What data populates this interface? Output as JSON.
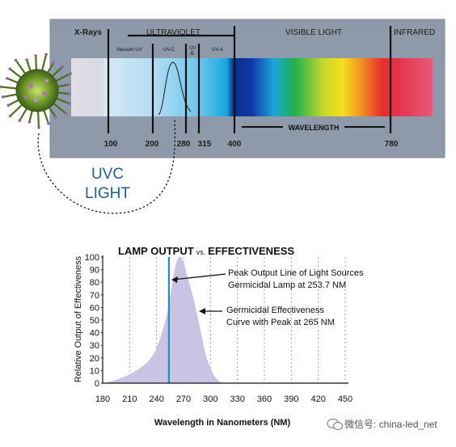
{
  "spectrum": {
    "regions": {
      "xrays": "X-Rays",
      "ultraviolet": "ULTRAVIOLET",
      "visible": "VISIBLE LIGHT",
      "infrared": "INFRARED"
    },
    "uv_bands": {
      "vacuum": "Vacuum UV",
      "uvc": "UV-C",
      "uvb_top": "UV",
      "uvb_bottom": "-B",
      "uva": "UV-A"
    },
    "wavelength_label": "WAVELENGTH",
    "ticks": [
      "100",
      "200",
      "280",
      "315",
      "400",
      "780"
    ],
    "uvc_callout": [
      "UVC",
      "LIGHT"
    ]
  },
  "chart_data": {
    "type": "area",
    "title_main": "LAMP OUTPUT",
    "title_vs": "vs.",
    "title_end": "EFFECTIVENESS",
    "xlabel": "Wavelength in Nanometers (NM)",
    "ylabel": "Relative Output of Effectiveness",
    "xlim": [
      180,
      450
    ],
    "ylim": [
      0,
      100
    ],
    "xticks": [
      180,
      210,
      240,
      270,
      300,
      330,
      360,
      390,
      420,
      450
    ],
    "yticks": [
      0,
      10,
      20,
      30,
      40,
      50,
      60,
      70,
      80,
      90,
      100
    ],
    "grid": "vertical dotted",
    "effectiveness_curve": {
      "x": [
        183,
        200,
        215,
        230,
        240,
        250,
        255,
        260,
        265,
        270,
        275,
        280,
        285,
        290,
        295,
        300,
        305,
        312
      ],
      "y": [
        0,
        4,
        9,
        17,
        28,
        50,
        68,
        90,
        100,
        96,
        83,
        70,
        55,
        38,
        22,
        12,
        5,
        0
      ],
      "color": "#c9c4e4"
    },
    "peak_line": {
      "x": 253.7,
      "color": "#1a94b8"
    },
    "annotations": [
      {
        "lines": [
          "Peak Output Line of Light Sources",
          "Germicidal Lamp at 253.7 NM"
        ]
      },
      {
        "lines": [
          "Germicidal Effectiveness",
          "Curve with Peak at 265 NM"
        ]
      }
    ]
  },
  "watermark": "微信号: china-led_net"
}
